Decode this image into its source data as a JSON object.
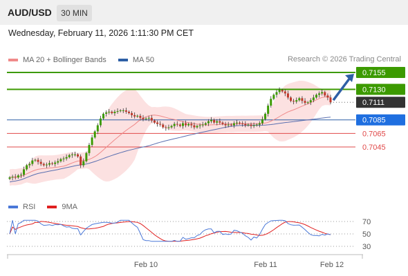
{
  "header": {
    "symbol": "AUD/USD",
    "timeframe": "30 MIN",
    "datetime": "Wednesday, February 11, 2026 1:11:30 PM CET"
  },
  "legend": {
    "ma20": "MA 20 + Bollinger Bands",
    "ma50": "MA 50",
    "rsi": "RSI",
    "ma9": "9MA"
  },
  "credit": "Research © 2026 Trading Central",
  "colors": {
    "resistance": "#3c9a00",
    "support": "#e04848",
    "pivot": "#2d5fa5",
    "current": "#333333",
    "up_candle": "#3c9a00",
    "down_candle": "#c0392b",
    "bollinger_fill": "#fbd7d7",
    "ma20": "#f08a8a",
    "ma50": "#5a6fb0",
    "rsi": "#4a78d8",
    "ma9": "#e02020",
    "arrow": "#2d5fa5"
  },
  "chart_data": [
    {
      "type": "candlestick",
      "symbol": "AUD/USD",
      "timeframe": "30 MIN",
      "x_ticks": [
        "Feb 10",
        "Feb 11",
        "Feb 12"
      ],
      "ylim": [
        0.6995,
        0.717
      ],
      "levels": [
        {
          "label": "0.7155",
          "value": 0.7155,
          "kind": "resistance"
        },
        {
          "label": "0.7130",
          "value": 0.713,
          "kind": "resistance"
        },
        {
          "label": "0.7111",
          "value": 0.7111,
          "kind": "current"
        },
        {
          "label": "0.7085",
          "value": 0.7085,
          "kind": "pivot"
        },
        {
          "label": "0.7065",
          "value": 0.7065,
          "kind": "support"
        },
        {
          "label": "0.7045",
          "value": 0.7045,
          "kind": "support"
        }
      ],
      "close": [
        0.7,
        0.7001,
        0.7,
        0.7003,
        0.7004,
        0.7012,
        0.7018,
        0.702,
        0.7025,
        0.7026,
        0.7023,
        0.702,
        0.7018,
        0.7019,
        0.7021,
        0.702,
        0.7022,
        0.7024,
        0.7027,
        0.7028,
        0.703,
        0.7033,
        0.7034,
        0.7034,
        0.7031,
        0.7018,
        0.7024,
        0.7036,
        0.7048,
        0.7059,
        0.7068,
        0.7077,
        0.7087,
        0.7094,
        0.7096,
        0.7097,
        0.7095,
        0.7097,
        0.7098,
        0.7099,
        0.7099,
        0.7097,
        0.7095,
        0.7092,
        0.709,
        0.7091,
        0.7088,
        0.7086,
        0.7087,
        0.7088,
        0.7084,
        0.7081,
        0.7079,
        0.7078,
        0.7074,
        0.7073,
        0.7074,
        0.7076,
        0.7079,
        0.7078,
        0.7076,
        0.708,
        0.7077,
        0.7079,
        0.7077,
        0.7074,
        0.7076,
        0.7077,
        0.7078,
        0.708,
        0.7083,
        0.7085,
        0.7081,
        0.7083,
        0.7081,
        0.7079,
        0.7077,
        0.7078,
        0.7077,
        0.708,
        0.7081,
        0.708,
        0.7079,
        0.7077,
        0.7078,
        0.7076,
        0.7077,
        0.7078,
        0.708,
        0.7086,
        0.7094,
        0.7106,
        0.7116,
        0.7122,
        0.7126,
        0.7129,
        0.7127,
        0.7124,
        0.7118,
        0.7113,
        0.7112,
        0.7114,
        0.7117,
        0.7113,
        0.711,
        0.7111,
        0.7114,
        0.7118,
        0.7122,
        0.7124,
        0.7126,
        0.7121,
        0.7118,
        0.7111
      ],
      "ma20_end": 0.7098,
      "ma50_end": 0.7089,
      "forecast_arrow_target": 0.7155
    },
    {
      "type": "line",
      "name": "RSI panel",
      "series": [
        {
          "name": "RSI"
        },
        {
          "name": "9MA"
        }
      ],
      "y_ticks": [
        "70",
        "50",
        "30"
      ],
      "ylim": [
        30,
        70
      ]
    }
  ]
}
